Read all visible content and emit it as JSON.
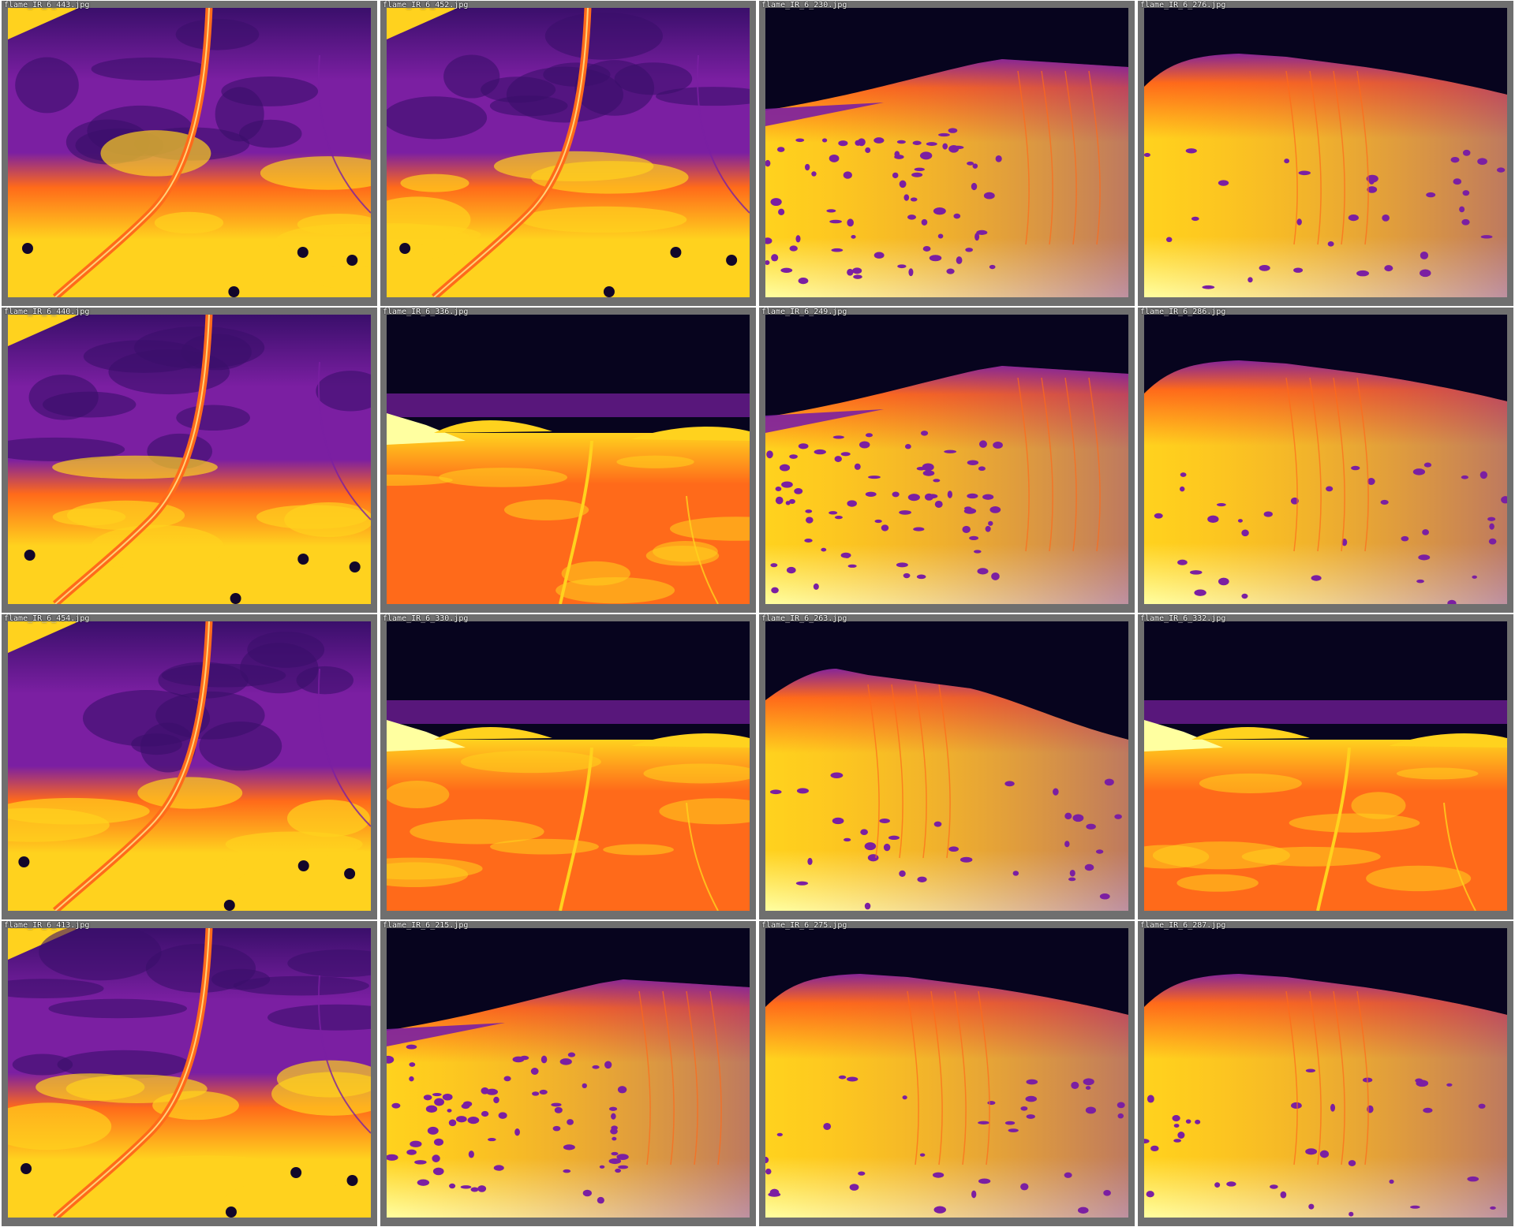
{
  "colors": {
    "frame": "#6f6f6f",
    "sky": "#07041e",
    "cold": "#3a0f6b",
    "cool": "#7b1fa2",
    "warm": "#ff6a1a",
    "hot": "#ffd21e",
    "hottest": "#ffffa0"
  },
  "tiles": [
    {
      "label": "flame_IR_6_443.jpg",
      "scene": "aerial-road"
    },
    {
      "label": "flame_IR_6_452.jpg",
      "scene": "aerial-road"
    },
    {
      "label": "flame_IR_6_230.jpg",
      "scene": "hill-left"
    },
    {
      "label": "flame_IR_6_276.jpg",
      "scene": "hill-center"
    },
    {
      "label": "flame_IR_6_440.jpg",
      "scene": "aerial-road"
    },
    {
      "label": "flame_IR_6_336.jpg",
      "scene": "valley"
    },
    {
      "label": "flame_IR_6_249.jpg",
      "scene": "hill-left"
    },
    {
      "label": "flame_IR_6_286.jpg",
      "scene": "hill-center"
    },
    {
      "label": "flame_IR_6_454.jpg",
      "scene": "aerial-road"
    },
    {
      "label": "flame_IR_6_330.jpg",
      "scene": "valley"
    },
    {
      "label": "flame_IR_6_263.jpg",
      "scene": "hill-full"
    },
    {
      "label": "flame_IR_6_332.jpg",
      "scene": "valley"
    },
    {
      "label": "flame_IR_6_413.jpg",
      "scene": "aerial-road"
    },
    {
      "label": "flame_IR_6_215.jpg",
      "scene": "hill-left"
    },
    {
      "label": "flame_IR_6_275.jpg",
      "scene": "hill-center"
    },
    {
      "label": "flame_IR_6_287.jpg",
      "scene": "hill-center"
    }
  ]
}
